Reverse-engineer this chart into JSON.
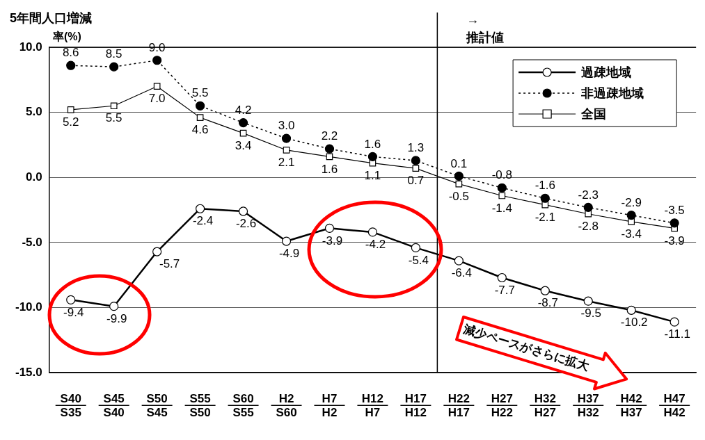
{
  "chart_data": {
    "type": "line",
    "ylabel": "5年間人口増減率(%)",
    "categories": [
      "S40\nS35",
      "S45\nS40",
      "S50\nS45",
      "S55\nS50",
      "S60\nS55",
      "H2\nS60",
      "H7\nH2",
      "H12\nH7",
      "H17\nH12",
      "H22\nH17",
      "H27\nH22",
      "H32\nH27",
      "H37\nH32",
      "H42\nH37",
      "H47\nH42"
    ],
    "series": [
      {
        "name": "過疎地域",
        "color": "#000000",
        "marker": "circle",
        "line_style": "solid",
        "values": [
          -9.4,
          -9.9,
          -5.7,
          -2.4,
          -2.6,
          -4.9,
          -3.9,
          -4.2,
          -5.4,
          -6.4,
          -7.7,
          -8.7,
          -9.5,
          -10.2,
          -11.1
        ],
        "value_labels": [
          "-9.4",
          "-9.9",
          "-5.7",
          "-2.4",
          "-2.6",
          "-4.9",
          "-3.9",
          "-4.2",
          "-5.4",
          "-6.4",
          "-7.7",
          "-8.7",
          "-9.5",
          "-10.2",
          "-11.1"
        ]
      },
      {
        "name": "非過疎地域",
        "color": "#000000",
        "marker": "circle",
        "line_style": "dotted",
        "values": [
          8.6,
          8.5,
          9.0,
          5.5,
          4.2,
          3.0,
          2.2,
          1.6,
          1.3,
          0.1,
          -0.8,
          -1.6,
          -2.3,
          -2.9,
          -3.5
        ],
        "value_labels": [
          "8.6",
          "8.5",
          "9.0",
          "5.5",
          "4.2",
          "3.0",
          "2.2",
          "1.6",
          "1.3",
          "0.1",
          "-0.8",
          "-1.6",
          "-2.3",
          "-2.9",
          "-3.5"
        ]
      },
      {
        "name": "全国",
        "color": "#000000",
        "marker": "square",
        "line_style": "solid",
        "values": [
          5.2,
          5.5,
          7.0,
          4.6,
          3.4,
          2.1,
          1.6,
          1.1,
          0.7,
          -0.5,
          -1.4,
          -2.1,
          -2.8,
          -3.4,
          -3.9
        ],
        "value_labels": [
          "5.2",
          "5.5",
          "7.0",
          "4.6",
          "3.4",
          "2.1",
          "1.6",
          "1.1",
          "0.7",
          "-0.5",
          "-1.4",
          "-2.1",
          "-2.8",
          "-3.4",
          "-3.9"
        ]
      }
    ],
    "ylim": [
      -15,
      10
    ],
    "yticks": [
      {
        "value": -15,
        "label": "-15.0"
      },
      {
        "value": -10,
        "label": "-10.0"
      },
      {
        "value": -5,
        "label": "-5.0"
      },
      {
        "value": 0,
        "label": "0.0"
      },
      {
        "value": 5,
        "label": "5.0"
      },
      {
        "value": 10,
        "label": "10.0"
      }
    ],
    "grid": "y",
    "legend": "top right",
    "ref_lines": [
      {
        "axis": "x",
        "value": "H22\nH17",
        "label": "→\n推計値"
      }
    ],
    "annotations": [
      "減少ペースがさらに拡大"
    ]
  }
}
